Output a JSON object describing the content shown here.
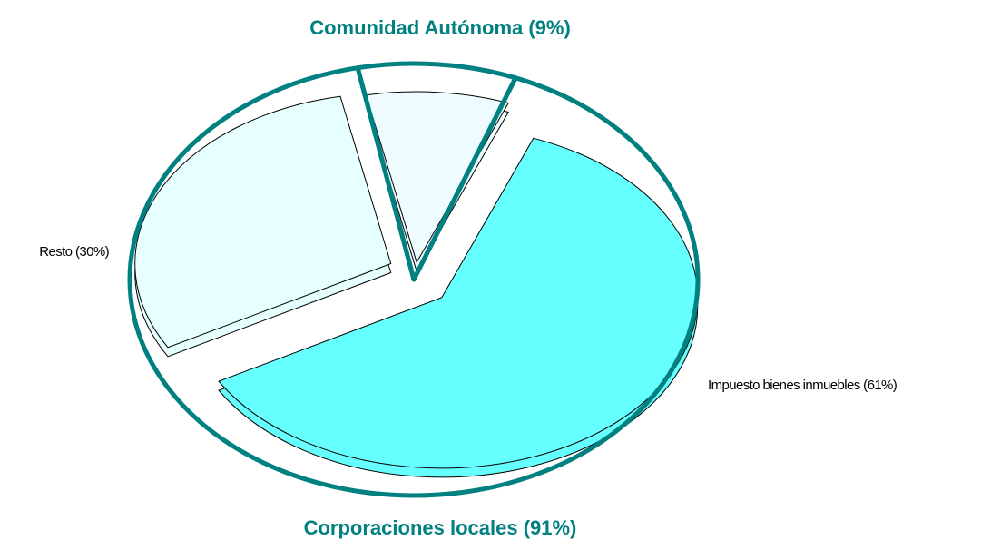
{
  "chart_data": {
    "type": "pie",
    "categories": [
      "Impuesto bienes inmuebles (61%)",
      "Resto (30%)",
      null
    ],
    "values": [
      61,
      30,
      9
    ],
    "colors": [
      "#66ffff",
      "#e6ffff",
      "#eefcff"
    ],
    "groups": [
      {
        "name": "Corporaciones locales (91%)",
        "value": 91,
        "color": "#008080"
      },
      {
        "name": "Comunidad Autónoma (9%)",
        "value": 9,
        "color": "#008080"
      }
    ]
  }
}
